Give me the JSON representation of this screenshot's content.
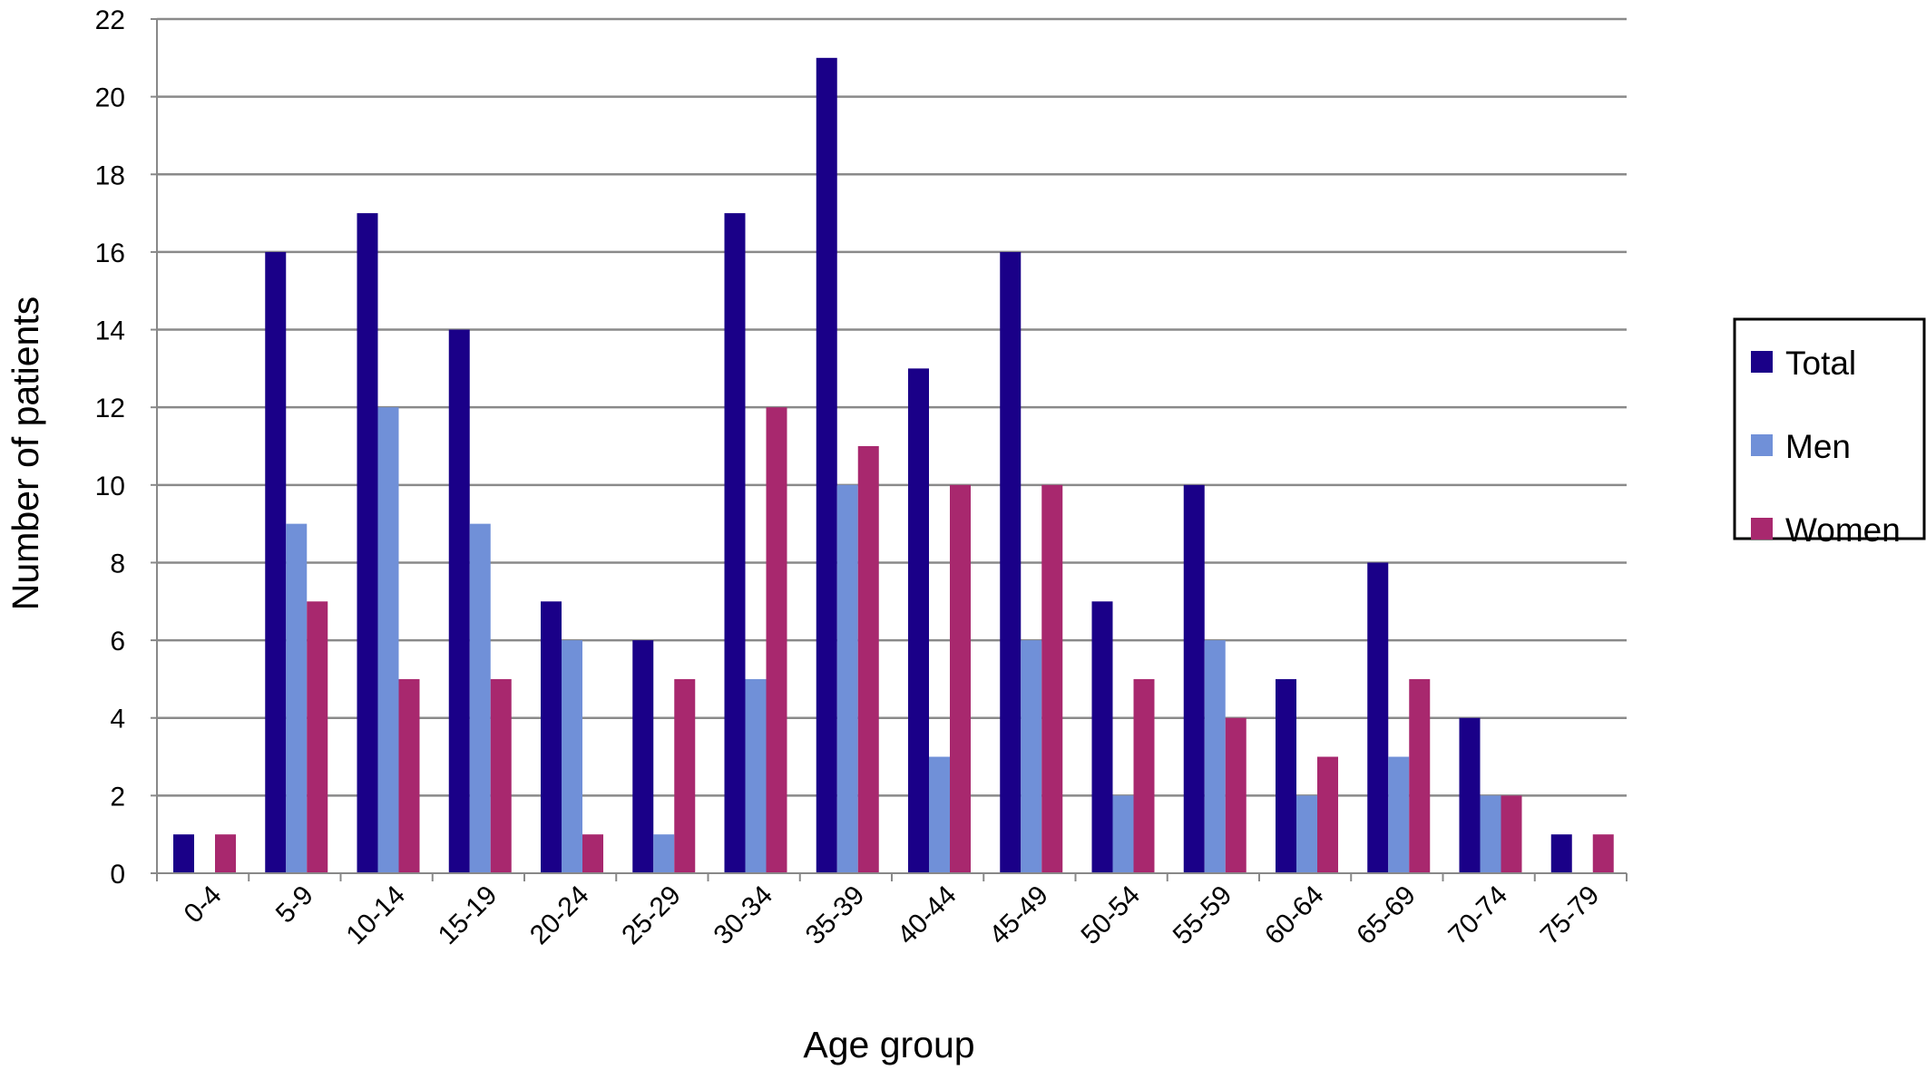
{
  "chart_data": {
    "type": "bar",
    "xlabel": "Age group",
    "ylabel": "Number of patients",
    "ylim": [
      0,
      22
    ],
    "yticks": [
      0,
      2,
      4,
      6,
      8,
      10,
      12,
      14,
      16,
      18,
      20,
      22
    ],
    "grid": true,
    "legend_position": "right",
    "categories": [
      "0-4",
      "5-9",
      "10-14",
      "15-19",
      "20-24",
      "25-29",
      "30-34",
      "35-39",
      "40-44",
      "45-49",
      "50-54",
      "55-59",
      "60-64",
      "65-69",
      "70-74",
      "75-79"
    ],
    "series": [
      {
        "name": "Total",
        "color": "#1a0088",
        "values": [
          1,
          16,
          17,
          14,
          7,
          6,
          17,
          21,
          13,
          16,
          7,
          10,
          5,
          8,
          4,
          1
        ]
      },
      {
        "name": "Men",
        "color": "#7090d8",
        "values": [
          0,
          9,
          12,
          9,
          6,
          1,
          5,
          10,
          3,
          6,
          2,
          6,
          2,
          3,
          2,
          0
        ]
      },
      {
        "name": "Women",
        "color": "#a8286e",
        "values": [
          1,
          7,
          5,
          5,
          1,
          5,
          12,
          11,
          10,
          10,
          5,
          4,
          3,
          5,
          2,
          1
        ]
      }
    ]
  }
}
